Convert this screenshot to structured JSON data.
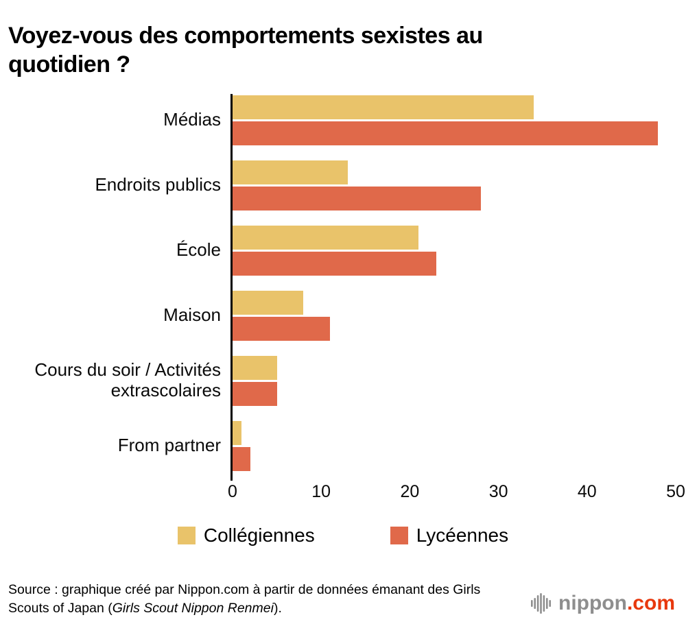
{
  "title": "Voyez-vous des comportements sexistes au quotidien ?",
  "chart_data": {
    "type": "bar",
    "orientation": "horizontal",
    "title": "Voyez-vous des comportements sexistes au quotidien ?",
    "categories": [
      "Médias",
      "Endroits publics",
      "École",
      "Maison",
      "Cours du soir / Activités extrascolaires",
      "From partner"
    ],
    "series": [
      {
        "name": "Collégiennes",
        "color": "#e9c36a",
        "values": [
          34,
          13,
          21,
          8,
          5,
          1
        ]
      },
      {
        "name": "Lycéennes",
        "color": "#e0694a",
        "values": [
          48,
          28,
          23,
          11,
          5,
          2
        ]
      }
    ],
    "xlim": [
      0,
      50
    ],
    "x_ticks": [
      0,
      10,
      20,
      30,
      40,
      50
    ],
    "xlabel": "",
    "ylabel": "",
    "grid": false,
    "legend_position": "bottom"
  },
  "source": {
    "text_before_italic": "Source : graphique créé par Nippon.com à partir de données émanant des Girls Scouts of Japan (",
    "italic": "Girls Scout Nippon Renmei",
    "text_after_italic": ")."
  },
  "logo": {
    "word": "nippon",
    "tld": ".com",
    "word_color": "#8e8e8e",
    "tld_color": "#e8380d",
    "icon": "soundwave-icon",
    "icon_color": "#8e8e8e"
  }
}
